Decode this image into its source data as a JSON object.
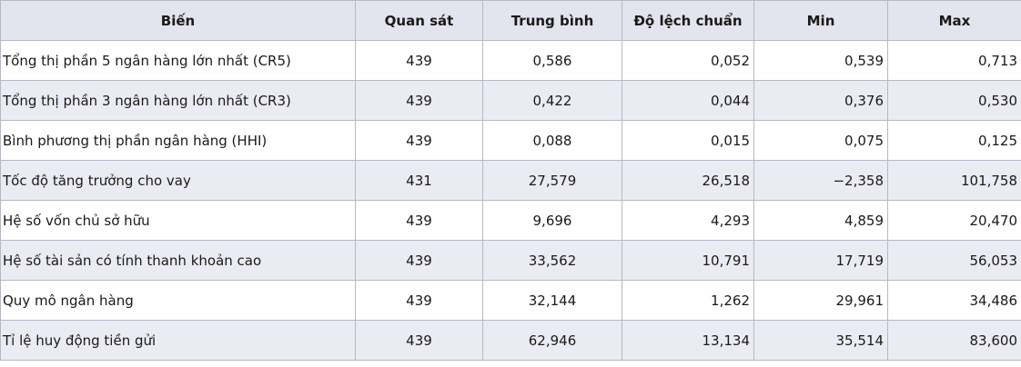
{
  "table": {
    "header": [
      "Biến",
      "Quan sát",
      "Trung bình",
      "Độ lệch chuẩn",
      "Min",
      "Max"
    ],
    "rows": [
      [
        "Tổng thị phần 5 ngân hàng lớn nhất (CR5)",
        "439",
        "0,586",
        "0,052",
        "0,539",
        "0,713"
      ],
      [
        "Tổng thị phần 3 ngân hàng lớn nhất (CR3)",
        "439",
        "0,422",
        "0,044",
        "0,376",
        "0,530"
      ],
      [
        "Bình phương thị phần ngân hàng (HHI)",
        "439",
        "0,088",
        "0,015",
        "0,075",
        "0,125"
      ],
      [
        "Tốc độ tăng trưởng cho vay",
        "431",
        "27,579",
        "26,518",
        "−2,358",
        "101,758"
      ],
      [
        "Hệ số vốn chủ sở hữu",
        "439",
        "9,696",
        "4,293",
        "4,859",
        "20,470"
      ],
      [
        "Hệ số tài sản có tính thanh khoản cao",
        "439",
        "33,562",
        "10,791",
        "17,719",
        "56,053"
      ],
      [
        "Quy mô ngân hàng",
        "439",
        "32,144",
        "1,262",
        "29,961",
        "34,486"
      ],
      [
        "Tỉ lệ huy động tiền gửi",
        "439",
        "62,946",
        "13,134",
        "35,514",
        "83,600"
      ]
    ]
  }
}
